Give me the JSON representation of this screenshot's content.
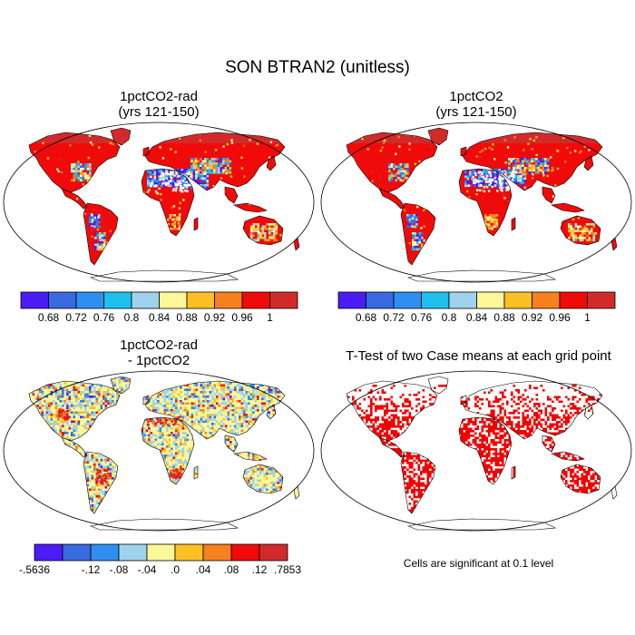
{
  "title": "SON BTRAN2 (unitless)",
  "colors": {
    "abs_scale": [
      "#4b1cf5",
      "#3a6ae0",
      "#2f8ef0",
      "#1ec0ee",
      "#9fd3ec",
      "#fdf79a",
      "#fdc024",
      "#f7801f",
      "#f10a0a",
      "#d22a2a"
    ],
    "diff_scale": [
      "#4b1cf5",
      "#3a6ae0",
      "#2f8ef0",
      "#9fd3ec",
      "#fdf79a",
      "#fdc024",
      "#f7801f",
      "#f10a0a",
      "#d22a2a"
    ],
    "significant": "#f20000",
    "ocean": "#ffffff",
    "coast": "#000000"
  },
  "panels": [
    {
      "id": "rad",
      "title_line1": "1pctCO2-rad",
      "title_line2": "(yrs 121-150)",
      "colorbar_labels": [
        "0.68",
        "0.72",
        "0.76",
        "0.8",
        "0.84",
        "0.88",
        "0.92",
        "0.96",
        "1"
      ]
    },
    {
      "id": "ctl",
      "title_line1": "1pctCO2",
      "title_line2": "(yrs 121-150)",
      "colorbar_labels": [
        "0.68",
        "0.72",
        "0.76",
        "0.8",
        "0.84",
        "0.88",
        "0.92",
        "0.96",
        "1"
      ]
    },
    {
      "id": "diff",
      "title_line1": "1pctCO2-rad",
      "title_line2": "- 1pctCO2",
      "colorbar_labels": [
        "-.5636",
        "-.12",
        "-.08",
        "-.04",
        ".0",
        ".04",
        ".08",
        ".12",
        ".7853"
      ]
    },
    {
      "id": "ttest",
      "title_line1": "T-Test of two Case means at each grid point",
      "title_line2": "",
      "note": "Cells are significant at 0.1 level"
    }
  ]
}
